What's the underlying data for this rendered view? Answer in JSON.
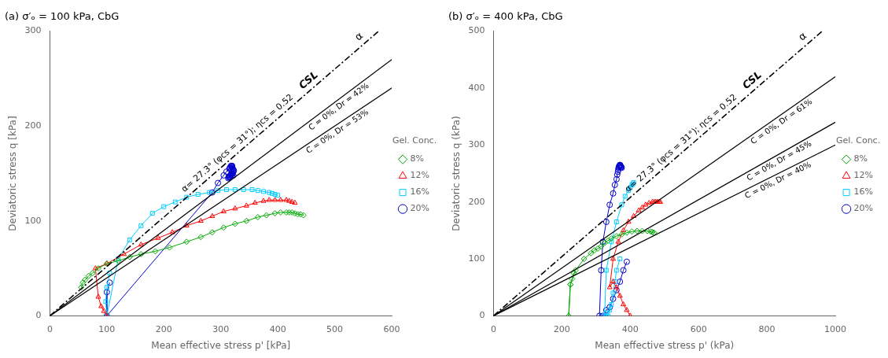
{
  "chart_data": [
    {
      "type": "line",
      "title": "(a) σ′ₒ = 100 kPa, CbG",
      "x_label": "Mean effective stress p' [kPa]",
      "y_label": "Deviatoric stress q [kPa]",
      "xlim": [
        0,
        600
      ],
      "ylim": [
        0,
        300
      ],
      "xticks": [
        0,
        100,
        200,
        300,
        400,
        500,
        600
      ],
      "yticks": [
        0,
        100,
        200,
        300
      ],
      "grid": false,
      "legend": "right",
      "legend_title": "Gel. Conc.",
      "csl": {
        "label": "CSL",
        "color": "#000000",
        "line_style": "dashdot",
        "x": [
          0,
          576.9230769230769
        ],
        "y": [
          0,
          300
        ],
        "annotations": [
          "α= 27.3° (φcs = 31°); ηcs = 0.52",
          "α"
        ]
      },
      "reference_lines": [
        {
          "label": "C = 0%, Dr = 42%",
          "color": "#000000",
          "line_style": "solid",
          "x": [
            0,
            666.6666666666666
          ],
          "y": [
            0,
            300
          ]
        },
        {
          "label": "C = 0%, Dr = 53%",
          "color": "#000000",
          "line_style": "solid",
          "x": [
            0,
            750.0
          ],
          "y": [
            0,
            300
          ]
        }
      ],
      "series": [
        {
          "name": "8%",
          "color": "#00aa00",
          "marker": "diamond",
          "x": [
            55,
            58,
            62,
            68,
            75,
            85,
            100,
            120,
            140,
            160,
            185,
            210,
            240,
            265,
            285,
            305,
            325,
            345,
            365,
            380,
            395,
            405,
            415,
            420,
            425,
            430,
            435,
            440,
            445
          ],
          "values": [
            30,
            35,
            38,
            42,
            45,
            50,
            55,
            58,
            62,
            65,
            68,
            72,
            78,
            83,
            88,
            93,
            97,
            100,
            104,
            106,
            108,
            109,
            109,
            109,
            109,
            108,
            107,
            107,
            106
          ]
        },
        {
          "name": "12%",
          "color": "#ff0000",
          "marker": "triangle",
          "x": [
            100,
            95,
            90,
            85,
            80,
            100,
            130,
            160,
            190,
            215,
            240,
            265,
            285,
            305,
            325,
            345,
            360,
            375,
            385,
            395,
            405,
            415,
            420,
            425,
            430
          ],
          "values": [
            0,
            5,
            10,
            20,
            50,
            55,
            65,
            75,
            82,
            88,
            95,
            100,
            105,
            110,
            113,
            116,
            119,
            121,
            122,
            122,
            122,
            122,
            121,
            120,
            119
          ]
        },
        {
          "name": "16%",
          "color": "#00ccff",
          "marker": "square",
          "x": [
            105,
            100,
            98,
            100,
            120,
            140,
            160,
            180,
            200,
            220,
            240,
            260,
            280,
            295,
            310,
            325,
            340,
            355,
            365,
            375,
            385,
            390,
            395,
            400
          ],
          "values": [
            45,
            30,
            15,
            0,
            60,
            80,
            95,
            108,
            115,
            120,
            125,
            128,
            130,
            132,
            133,
            133,
            133,
            133,
            132,
            131,
            130,
            129,
            128,
            127
          ]
        },
        {
          "name": "20%",
          "color": "#0000cc",
          "marker": "circle",
          "x": [
            105,
            100,
            100,
            285,
            295,
            305,
            310,
            315,
            316,
            317,
            318,
            319,
            320,
            320,
            320,
            321,
            322,
            323,
            322,
            321,
            320,
            319,
            318,
            317,
            316,
            315,
            314,
            313,
            315,
            316,
            318,
            320,
            322
          ],
          "values": [
            35,
            25,
            0,
            130,
            140,
            148,
            152,
            155,
            156,
            157,
            158,
            158,
            158,
            157,
            156,
            155,
            154,
            153,
            152,
            151,
            150,
            150,
            149,
            148,
            147,
            146,
            146,
            145,
            146,
            147,
            148,
            148,
            148
          ]
        }
      ]
    },
    {
      "type": "line",
      "title": "(b) σ′ₒ = 400 kPa, CbG",
      "x_label": "Mean effective stress p' (kPa)",
      "y_label": "Deviatoric stress q (kPa)",
      "xlim": [
        0,
        1000
      ],
      "ylim": [
        0,
        500
      ],
      "xticks": [
        0,
        200,
        400,
        600,
        800,
        1000
      ],
      "yticks": [
        0,
        100,
        200,
        300,
        400,
        500
      ],
      "grid": false,
      "legend": "right",
      "legend_title": "Gel. Conc.",
      "csl": {
        "label": "CSL",
        "color": "#000000",
        "line_style": "dashdot",
        "x": [
          0,
          961.5384615384615
        ],
        "y": [
          0,
          500
        ],
        "annotations": [
          "α= 27.3° (φcs = 31°); ηcs = 0.52",
          "α"
        ]
      },
      "reference_lines": [
        {
          "label": "C = 0%, Dr = 40%",
          "color": "#000000",
          "line_style": "solid",
          "x": [
            0,
            1000
          ],
          "y": [
            0,
            300
          ]
        },
        {
          "label": "C = 0%, Dr = 45%",
          "color": "#000000",
          "line_style": "solid",
          "x": [
            0,
            1000
          ],
          "y": [
            0,
            340
          ]
        },
        {
          "label": "C = 0%, Dr = 61%",
          "color": "#000000",
          "line_style": "solid",
          "x": [
            0,
            1000
          ],
          "y": [
            0,
            420
          ]
        }
      ],
      "series": [
        {
          "name": "8%",
          "color": "#00aa00",
          "marker": "diamond",
          "x": [
            235,
            230,
            225,
            220,
            225,
            240,
            265,
            285,
            295,
            305,
            315,
            325,
            335,
            345,
            360,
            375,
            390,
            405,
            420,
            435,
            450,
            460,
            465,
            470
          ],
          "values": [
            75,
            65,
            55,
            0,
            55,
            80,
            100,
            110,
            115,
            118,
            122,
            128,
            132,
            136,
            140,
            143,
            146,
            148,
            149,
            149,
            149,
            148,
            147,
            146
          ]
        },
        {
          "name": "12%",
          "color": "#ff0000",
          "marker": "triangle",
          "x": [
            400,
            390,
            380,
            370,
            360,
            350,
            340,
            350,
            365,
            380,
            395,
            410,
            425,
            435,
            445,
            455,
            465,
            470,
            475,
            480,
            485,
            488
          ],
          "values": [
            0,
            10,
            20,
            35,
            50,
            60,
            50,
            100,
            130,
            150,
            165,
            175,
            185,
            190,
            195,
            198,
            200,
            200,
            200,
            200,
            200,
            200
          ]
        },
        {
          "name": "16%",
          "color": "#00ccff",
          "marker": "square",
          "x": [
            370,
            360,
            355,
            350,
            345,
            340,
            335,
            330,
            325,
            330,
            345,
            360,
            375,
            385,
            395,
            400,
            405,
            408,
            410
          ],
          "values": [
            100,
            80,
            60,
            40,
            20,
            10,
            0,
            5,
            0,
            80,
            130,
            165,
            195,
            210,
            220,
            225,
            230,
            232,
            234
          ]
        },
        {
          "name": "20%",
          "color": "#0000cc",
          "marker": "circle",
          "x": [
            390,
            380,
            370,
            360,
            350,
            340,
            330,
            320,
            310,
            315,
            320,
            330,
            340,
            350,
            355,
            360,
            362,
            364,
            365,
            366,
            367,
            368,
            369,
            370,
            370,
            371,
            372,
            373,
            374,
            375
          ],
          "values": [
            95,
            80,
            60,
            45,
            30,
            15,
            10,
            0,
            0,
            80,
            130,
            165,
            195,
            215,
            230,
            240,
            248,
            253,
            257,
            260,
            262,
            263,
            264,
            265,
            265,
            264,
            263,
            262,
            261,
            260
          ]
        }
      ]
    }
  ]
}
